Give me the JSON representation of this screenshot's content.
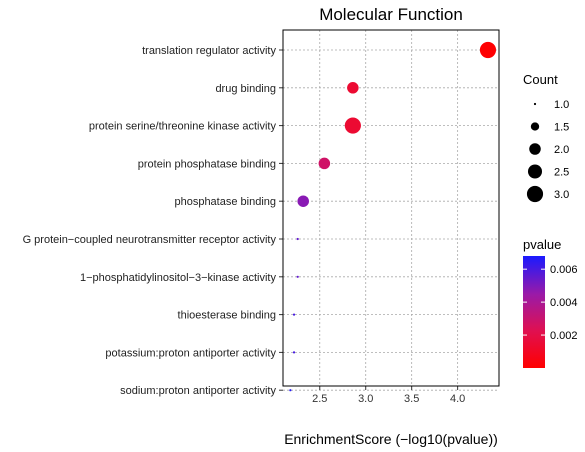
{
  "chart_data": {
    "type": "scatter",
    "title": "Molecular Function",
    "xlabel": "EnrichmentScore (−log10(pvalue))",
    "ylabel": "",
    "xlim": [
      2.1,
      4.45
    ],
    "x_ticks": [
      2.5,
      3.0,
      3.5,
      4.0
    ],
    "x_tick_labels": [
      "2.5",
      "3.0",
      "3.5",
      "4.0"
    ],
    "categories": [
      "translation regulator activity",
      "drug binding",
      "protein serine/threonine kinase activity",
      "protein phosphatase binding",
      "phosphatase binding",
      "G protein−coupled neurotransmitter receptor activity",
      "1−phosphatidylinositol−3−kinase activity",
      "thioesterase binding",
      "potassium:proton antiporter activity",
      "sodium:proton antiporter activity"
    ],
    "points": [
      {
        "term": "translation regulator activity",
        "x": 4.33,
        "count": 3,
        "pvalue": 5e-05
      },
      {
        "term": "drug binding",
        "x": 2.86,
        "count": 2,
        "pvalue": 0.0014
      },
      {
        "term": "protein serine/threonine kinase activity",
        "x": 2.86,
        "count": 3,
        "pvalue": 0.0014
      },
      {
        "term": "protein phosphatase binding",
        "x": 2.55,
        "count": 2,
        "pvalue": 0.0028
      },
      {
        "term": "phosphatase binding",
        "x": 2.32,
        "count": 2,
        "pvalue": 0.0048
      },
      {
        "term": "G protein−coupled neurotransmitter receptor activity",
        "x": 2.26,
        "count": 1,
        "pvalue": 0.0055
      },
      {
        "term": "1−phosphatidylinositol−3−kinase activity",
        "x": 2.26,
        "count": 1,
        "pvalue": 0.0055
      },
      {
        "term": "thioesterase binding",
        "x": 2.22,
        "count": 1,
        "pvalue": 0.006
      },
      {
        "term": "potassium:proton antiporter activity",
        "x": 2.22,
        "count": 1,
        "pvalue": 0.006
      },
      {
        "term": "sodium:proton antiporter activity",
        "x": 2.18,
        "count": 1,
        "pvalue": 0.0066
      }
    ],
    "size_legend": {
      "title": "Count",
      "values": [
        1.0,
        1.5,
        2.0,
        2.5,
        3.0
      ],
      "labels": [
        "1.0",
        "1.5",
        "2.0",
        "2.5",
        "3.0"
      ]
    },
    "color_legend": {
      "title": "pvalue",
      "range": [
        0.0,
        0.0068
      ],
      "ticks": [
        0.002,
        0.004,
        0.006
      ],
      "tick_labels": [
        "0.002",
        "0.004",
        "0.006"
      ],
      "low_color": "#ff0000",
      "high_color": "#1a1aff"
    },
    "grid": true,
    "legend_placement": "right"
  }
}
